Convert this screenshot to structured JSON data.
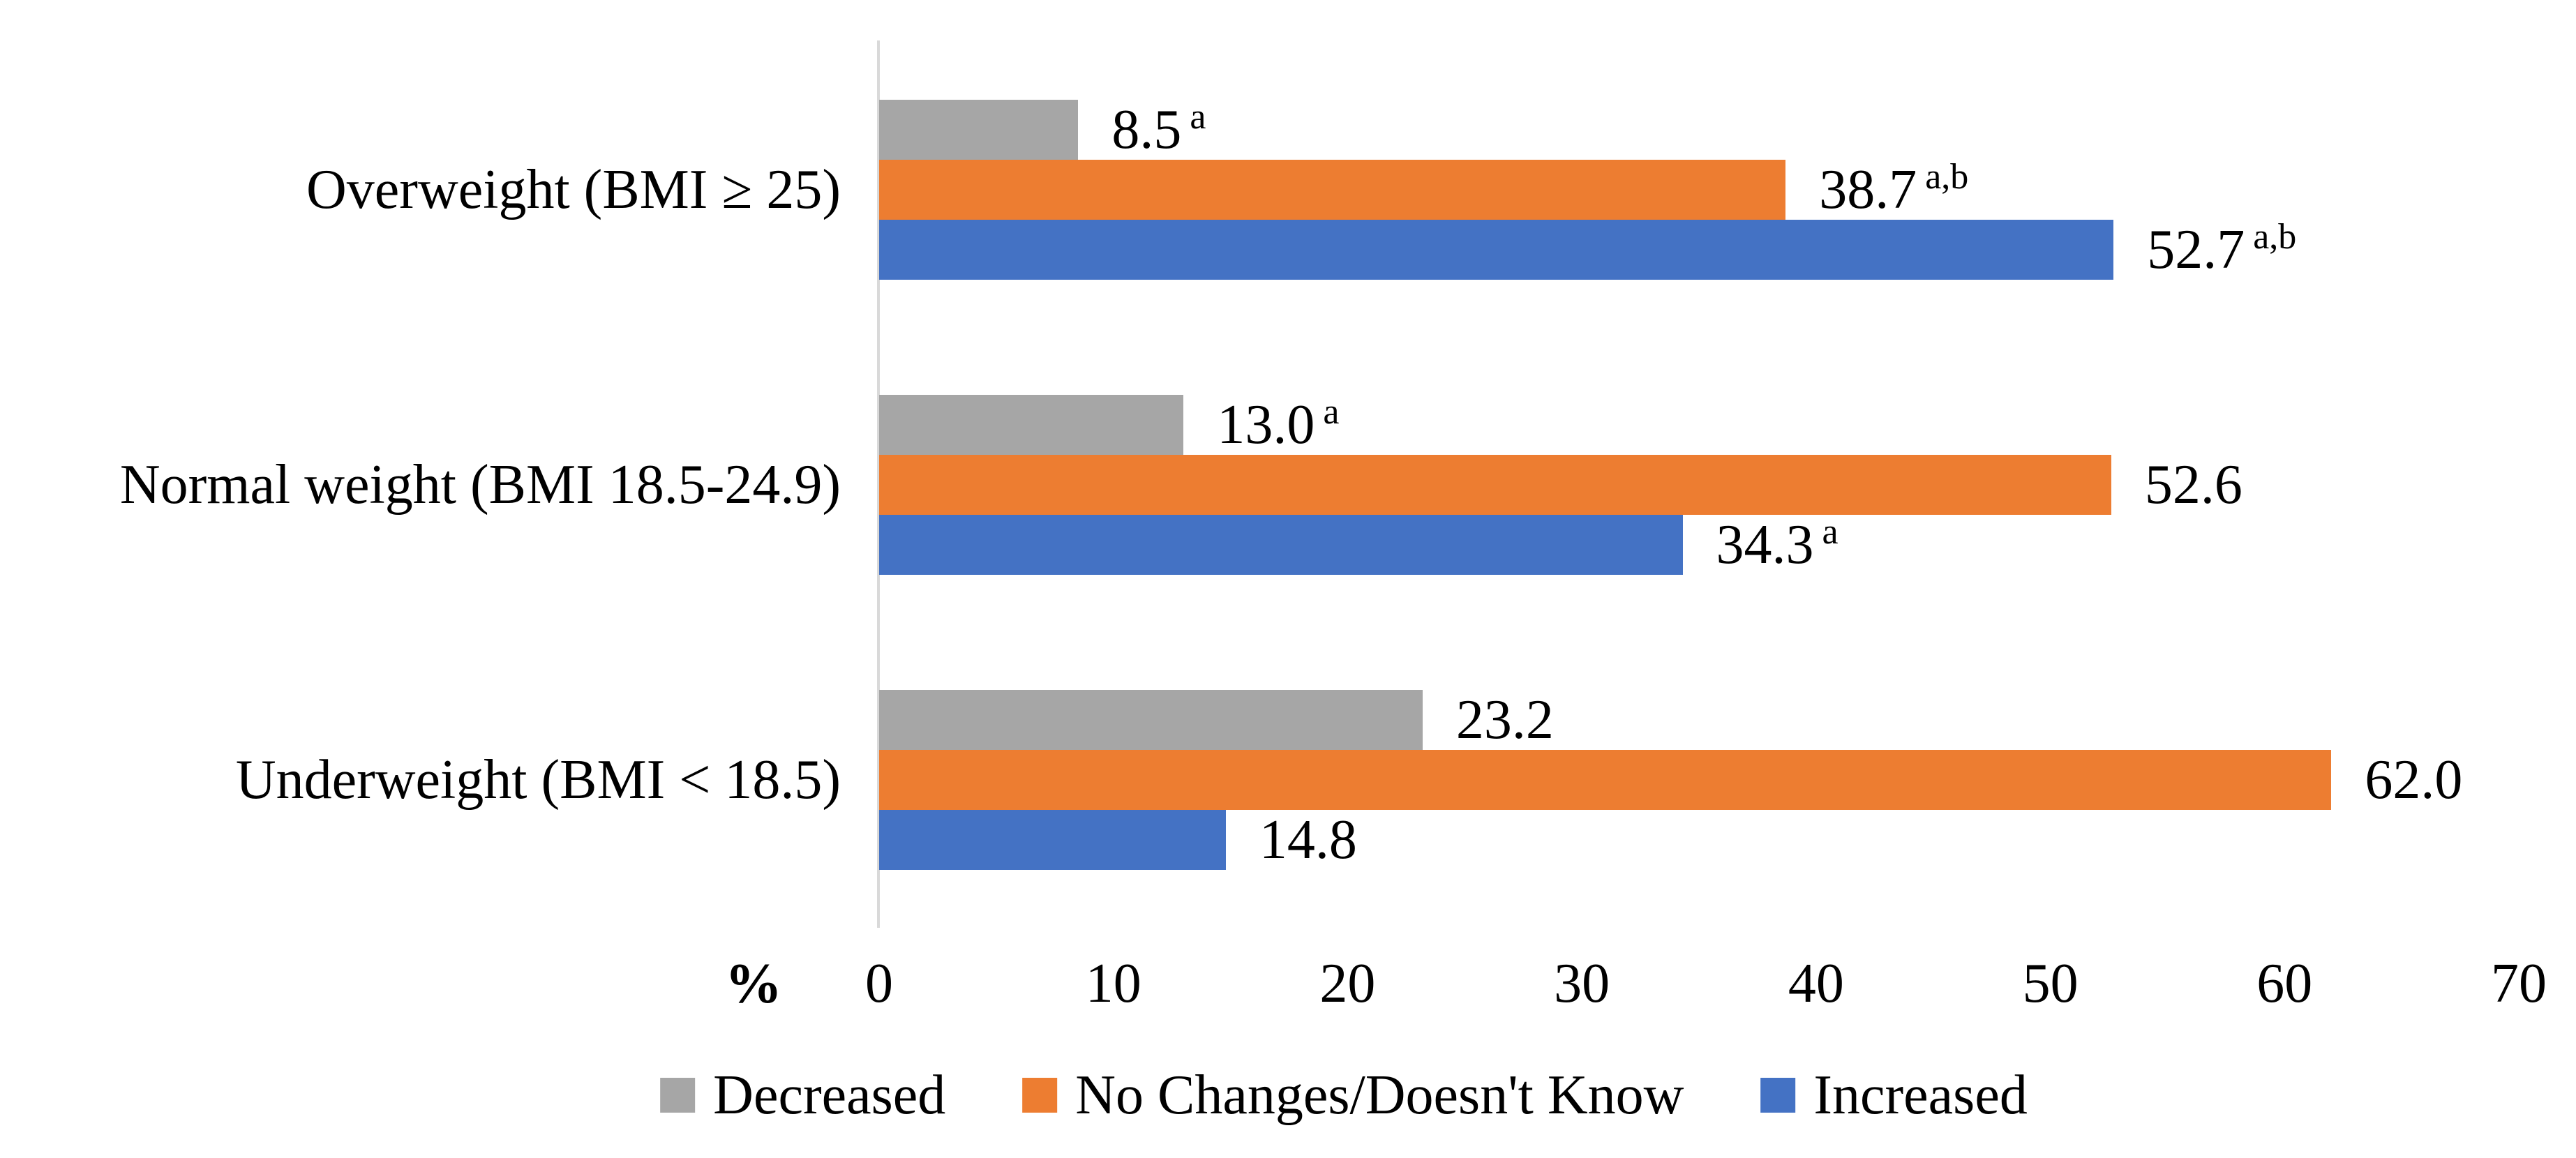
{
  "figure": {
    "background": "#FFFFFF",
    "text_color": "#000000",
    "axis_line_color": "#D9D9D9"
  },
  "chart_data": {
    "type": "bar",
    "orientation": "horizontal",
    "title": "",
    "categories": [
      "Overweight (BMI ≥ 25)",
      "Normal weight (BMI 18.5-24.9)",
      "Underweight (BMI < 18.5)"
    ],
    "series": [
      {
        "name": "Decreased",
        "color": "#A6A6A6",
        "values": [
          8.5,
          13.0,
          23.2
        ],
        "value_labels": [
          {
            "text": "8.5",
            "sup": "a"
          },
          {
            "text": "13.0",
            "sup": "a"
          },
          {
            "text": "23.2",
            "sup": ""
          }
        ]
      },
      {
        "name": "No Changes/Doesn't Know",
        "color": "#ED7D31",
        "values": [
          38.7,
          52.6,
          62.0
        ],
        "value_labels": [
          {
            "text": "38.7",
            "sup": "a,b"
          },
          {
            "text": "52.6",
            "sup": ""
          },
          {
            "text": "62.0",
            "sup": ""
          }
        ]
      },
      {
        "name": "Increased",
        "color": "#4472C4",
        "values": [
          52.7,
          34.3,
          14.8
        ],
        "value_labels": [
          {
            "text": "52.7",
            "sup": "a,b"
          },
          {
            "text": "34.3",
            "sup": "a"
          },
          {
            "text": "14.8",
            "sup": ""
          }
        ]
      }
    ],
    "xlabel": "%",
    "xlim": [
      0,
      70
    ],
    "x_ticks": [
      0,
      10,
      20,
      30,
      40,
      50,
      60,
      70
    ],
    "grid": false,
    "legend_position": "bottom"
  }
}
